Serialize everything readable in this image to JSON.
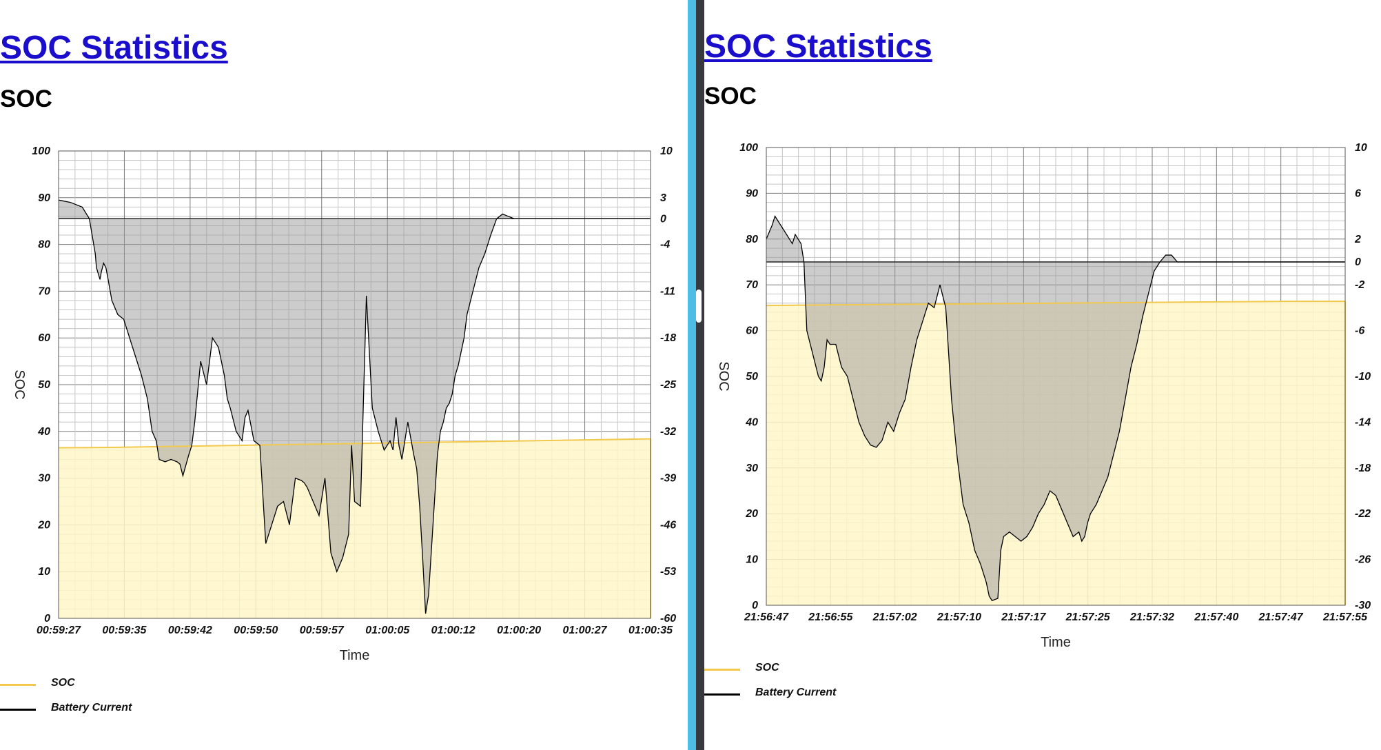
{
  "colors": {
    "soc_line": "#f2c94c",
    "soc_fill": "#fff6c8",
    "current_line": "#000000",
    "current_fill": "#c9c9c9",
    "overlap_fill": "#d2c99d",
    "divider_blue": "#4dbde6",
    "divider_dark": "#37393e"
  },
  "legend": {
    "soc_label": "SOC",
    "current_label": "Battery Current"
  },
  "left": {
    "title_link": "SOC Statistics",
    "heading": "SOC",
    "chart_data": {
      "type": "line",
      "xlabel": "Time",
      "ylabel": "SOC",
      "ylim": [
        0,
        100
      ],
      "y_ticks": [
        0,
        10,
        20,
        30,
        40,
        50,
        60,
        70,
        80,
        90,
        100
      ],
      "y2_ticks": [
        "-60",
        "-53",
        "-46",
        "-39",
        "-32",
        "-25",
        "-18",
        "-11",
        "-4",
        "0",
        "3",
        "10"
      ],
      "y2_tick_positions": [
        0,
        10,
        20,
        30,
        40,
        50,
        60,
        70,
        80,
        85.5,
        90,
        100
      ],
      "x_ticks": [
        "00:59:27",
        "00:59:35",
        "00:59:42",
        "00:59:50",
        "00:59:57",
        "01:00:05",
        "01:00:12",
        "01:00:20",
        "01:00:27",
        "01:00:35"
      ],
      "grid": true,
      "legend_position": "bottom-left",
      "series": [
        {
          "name": "SOC",
          "axis": "left",
          "x": [
            0,
            10,
            20,
            30,
            40,
            50,
            60,
            70,
            80,
            90,
            100
          ],
          "values": [
            36.5,
            36.6,
            36.8,
            37,
            37.2,
            37.4,
            37.6,
            37.8,
            38,
            38.2,
            38.4
          ]
        },
        {
          "name": "Battery Current",
          "axis": "left",
          "x": [
            0,
            2,
            4,
            5.2,
            6.2,
            6.4,
            7,
            7.2,
            7.6,
            8,
            8.3,
            9,
            10,
            11,
            12,
            12.5,
            13,
            14,
            15,
            15.8,
            16.5,
            17,
            18,
            19,
            20,
            20.5,
            21,
            22,
            22.5,
            23,
            24,
            25,
            26,
            27,
            27.5,
            28,
            28.5,
            29,
            30,
            31,
            31.5,
            32,
            33,
            34,
            35,
            36,
            37,
            38,
            39,
            40,
            41,
            41.5,
            42,
            43,
            44,
            44.5,
            45,
            46,
            47,
            48,
            49,
            49.5,
            50,
            51,
            52,
            53,
            54,
            55,
            56,
            56.5,
            57,
            57.5,
            58,
            59,
            60,
            60.5,
            61,
            61.5,
            62,
            62.5,
            63,
            63.5,
            64,
            64.5,
            65,
            65.5,
            66,
            66.5,
            67,
            67.5,
            68,
            68.5,
            69,
            70,
            71,
            72,
            73,
            74,
            75,
            76,
            77,
            78,
            78.5,
            79,
            80,
            81,
            82,
            83,
            84,
            85,
            86,
            87,
            88,
            89,
            90,
            91,
            92,
            93,
            94,
            95,
            96,
            97,
            98,
            99,
            100
          ],
          "values": [
            89.5,
            89,
            88,
            85.5,
            78,
            75,
            72.5,
            74,
            76,
            75,
            73,
            68,
            65,
            64,
            60,
            58,
            56,
            52,
            47,
            40,
            38,
            34,
            33.5,
            34,
            33.5,
            33,
            30.5,
            35,
            37,
            42,
            55,
            50,
            60,
            58,
            55,
            52,
            47,
            45,
            40,
            38,
            43,
            44.5,
            38,
            37,
            16,
            20,
            24,
            25,
            20,
            30,
            29.5,
            29,
            28,
            25,
            22,
            26,
            30,
            14,
            10,
            13,
            18,
            37,
            25,
            24,
            69,
            45,
            40,
            36,
            38,
            36,
            43,
            37,
            34,
            42,
            35,
            32,
            24,
            13,
            1,
            5,
            15,
            25,
            35,
            40,
            42,
            45,
            46,
            48,
            52,
            54,
            57,
            60,
            65,
            70,
            75,
            78,
            82,
            85.5,
            86.5,
            86,
            85.5,
            85.5,
            85.5,
            85.5,
            85.5,
            85.5,
            85.5,
            85.5,
            85.5,
            85.5,
            85.5,
            85.5,
            85.5,
            85.5,
            85.5,
            85.5,
            85.5,
            85.5,
            85.5,
            85.5,
            85.5,
            85.5,
            85.5,
            85.5,
            85.5
          ]
        }
      ],
      "baseline": 85.5
    }
  },
  "right": {
    "title_link": "SOC Statistics",
    "heading": "SOC",
    "chart_data": {
      "type": "line",
      "xlabel": "Time",
      "ylabel": "SOC",
      "ylim": [
        0,
        100
      ],
      "y_ticks": [
        0,
        10,
        20,
        30,
        40,
        50,
        60,
        70,
        80,
        90,
        100
      ],
      "y2_ticks": [
        "-30",
        "-26",
        "-22",
        "-18",
        "-14",
        "-10",
        "-6",
        "-2",
        "0",
        "2",
        "6",
        "10"
      ],
      "y2_tick_positions": [
        0,
        10,
        20,
        30,
        40,
        50,
        60,
        70,
        75,
        80,
        90,
        100
      ],
      "x_ticks": [
        "21:56:47",
        "21:56:55",
        "21:57:02",
        "21:57:10",
        "21:57:17",
        "21:57:25",
        "21:57:32",
        "21:57:40",
        "21:57:47",
        "21:57:55"
      ],
      "grid": true,
      "legend_position": "bottom-left",
      "series": [
        {
          "name": "SOC",
          "axis": "left",
          "x": [
            0,
            10,
            20,
            30,
            40,
            50,
            60,
            70,
            80,
            90,
            100
          ],
          "values": [
            65.5,
            65.6,
            65.7,
            65.8,
            65.9,
            66,
            66.1,
            66.2,
            66.3,
            66.4,
            66.4
          ]
        },
        {
          "name": "Battery Current",
          "axis": "left",
          "x": [
            0,
            1,
            1.5,
            2,
            3,
            4,
            4.5,
            5,
            5.5,
            6,
            6.5,
            7,
            8,
            9,
            9.5,
            10,
            10.5,
            11,
            12,
            13,
            14,
            15,
            16,
            17,
            18,
            19,
            20,
            21,
            22,
            23,
            24,
            25,
            26,
            27,
            28,
            29,
            30,
            31,
            32,
            33,
            34,
            35,
            36,
            37,
            38,
            38.5,
            39,
            40,
            40.5,
            41,
            42,
            43,
            44,
            45,
            46,
            47,
            48,
            49,
            50,
            51,
            52,
            53,
            54,
            54.5,
            55,
            55.5,
            56,
            57,
            58,
            59,
            60,
            61,
            62,
            63,
            64,
            65,
            66,
            67,
            68,
            69,
            70,
            71,
            72,
            73,
            74,
            75,
            76,
            77,
            78,
            79,
            80,
            81,
            82,
            83,
            84,
            85,
            86,
            87,
            88,
            89,
            90,
            91,
            92,
            93,
            94,
            95,
            96,
            97,
            98,
            99,
            100
          ],
          "values": [
            80,
            83,
            85,
            84,
            82,
            80,
            79,
            81,
            80,
            79,
            75,
            60,
            55,
            50,
            49,
            52,
            58,
            57,
            57,
            52,
            50,
            45,
            40,
            37,
            35,
            34.5,
            36,
            40,
            38,
            42,
            45,
            52,
            58,
            62,
            66,
            65,
            70,
            65,
            45,
            32,
            22,
            18,
            12,
            9,
            5,
            2,
            1,
            1.5,
            12,
            15,
            16,
            15,
            14,
            15,
            17,
            20,
            22,
            25,
            24,
            21,
            18,
            15,
            16,
            14,
            15,
            18,
            20,
            22,
            25,
            28,
            33,
            38,
            45,
            52,
            57,
            63,
            68,
            73,
            75,
            76.5,
            76.5,
            75,
            75,
            75,
            75,
            75,
            75,
            75,
            75,
            75,
            75,
            75,
            75,
            75,
            75,
            75,
            75,
            75,
            75,
            75,
            75,
            75,
            75,
            75,
            75,
            75,
            75,
            75,
            75,
            75,
            75
          ]
        }
      ],
      "baseline": 75
    }
  }
}
